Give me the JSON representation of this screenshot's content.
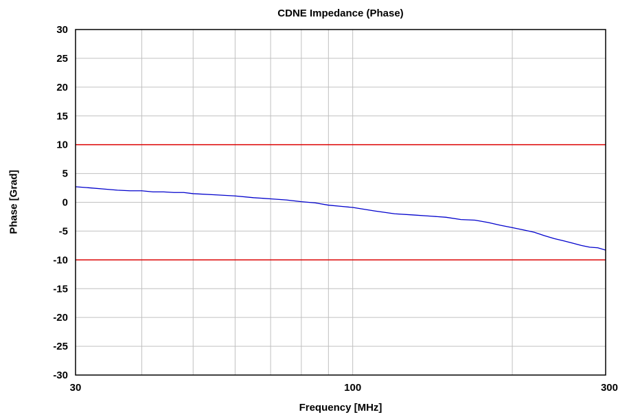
{
  "chart_data": {
    "type": "line",
    "title": "CDNE Impedance (Phase)",
    "xlabel": "Frequency [MHz]",
    "ylabel": "Phase [Grad]",
    "xscale": "log",
    "xlim": [
      30,
      300
    ],
    "ylim": [
      -30,
      30
    ],
    "x_ticks": [
      30,
      100,
      300
    ],
    "x_tick_labels": [
      "30",
      "100",
      "300"
    ],
    "x_minor_gridlines": [
      40,
      50,
      60,
      70,
      80,
      90,
      200
    ],
    "y_ticks": [
      -30,
      -25,
      -20,
      -15,
      -10,
      -5,
      0,
      5,
      10,
      15,
      20,
      25,
      30
    ],
    "y_tick_labels": [
      "-30",
      "-25",
      "-20",
      "-15",
      "-10",
      "-5",
      "0",
      "5",
      "10",
      "15",
      "20",
      "25",
      "30"
    ],
    "grid": true,
    "series": [
      {
        "color": "#0000cc",
        "x": [
          30,
          32,
          34,
          36,
          38,
          40,
          42,
          44,
          46,
          48,
          50,
          55,
          60,
          65,
          70,
          75,
          80,
          85,
          90,
          95,
          100,
          110,
          120,
          130,
          140,
          150,
          160,
          170,
          180,
          190,
          200,
          210,
          220,
          230,
          240,
          250,
          260,
          270,
          280,
          290,
          300
        ],
        "y": [
          2.7,
          2.5,
          2.3,
          2.1,
          2.0,
          2.0,
          1.8,
          1.8,
          1.7,
          1.7,
          1.5,
          1.3,
          1.1,
          0.8,
          0.6,
          0.4,
          0.1,
          -0.1,
          -0.5,
          -0.7,
          -0.9,
          -1.5,
          -2.0,
          -2.2,
          -2.4,
          -2.6,
          -3.0,
          -3.1,
          -3.5,
          -4.0,
          -4.4,
          -4.8,
          -5.2,
          -5.8,
          -6.3,
          -6.7,
          -7.1,
          -7.5,
          -7.8,
          -7.9,
          -8.3
        ]
      }
    ],
    "limit_lines": [
      {
        "y": 10,
        "color": "#dd0000"
      },
      {
        "y": -10,
        "color": "#dd0000"
      }
    ]
  }
}
